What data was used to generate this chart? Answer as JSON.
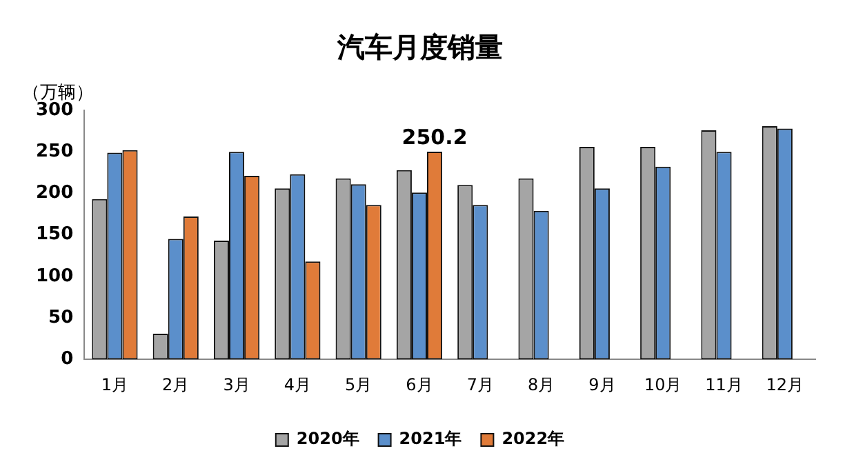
{
  "chart_data": {
    "type": "bar",
    "title": "汽车月度销量",
    "ylabel": "（万辆）",
    "categories": [
      "1月",
      "2月",
      "3月",
      "4月",
      "5月",
      "6月",
      "7月",
      "8月",
      "9月",
      "10月",
      "11月",
      "12月"
    ],
    "series": [
      {
        "name": "2020年",
        "color": "#a5a5a5",
        "values": [
          193,
          31,
          143,
          206,
          218,
          228,
          210,
          218,
          256,
          256,
          276,
          281
        ]
      },
      {
        "name": "2021年",
        "color": "#5b8fcb",
        "values": [
          249,
          145,
          250,
          223,
          211,
          201,
          186,
          179,
          206,
          232,
          250,
          278
        ]
      },
      {
        "name": "2022年",
        "color": "#e07b39",
        "values": [
          252,
          172,
          221,
          118,
          186,
          250.2,
          null,
          null,
          null,
          null,
          null,
          null
        ],
        "value_labels": [
          null,
          null,
          null,
          null,
          null,
          "250.2",
          null,
          null,
          null,
          null,
          null,
          null
        ]
      }
    ],
    "ylim": [
      0,
      300
    ],
    "yticks": [
      0,
      50,
      100,
      150,
      200,
      250,
      300
    ],
    "grid": false,
    "legend": "bottom"
  }
}
